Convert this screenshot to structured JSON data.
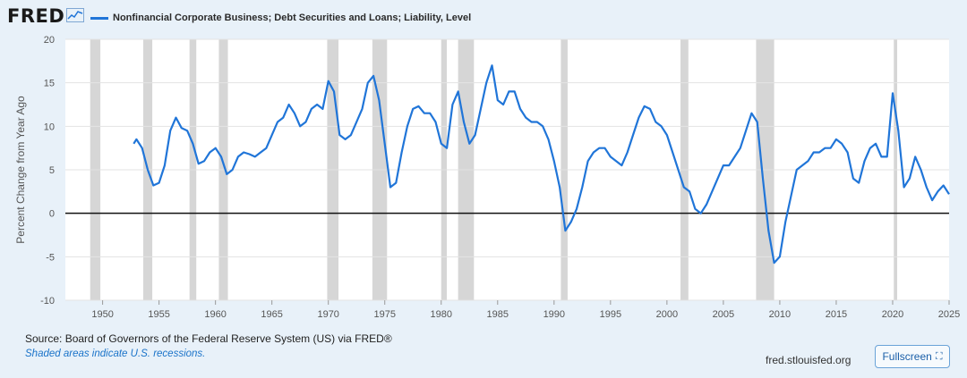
{
  "header": {
    "brand": "FRED",
    "brand_icon": "chart-line-icon",
    "legend_label": "Nonfinancial Corporate Business; Debt Securities and Loans; Liability, Level",
    "series_color": "#2075d8"
  },
  "footer": {
    "source": "Source: Board of Governors of the Federal Reserve System (US) via FRED®",
    "recession_note": "Shaded areas indicate U.S. recessions.",
    "site": "fred.stlouisfed.org",
    "fullscreen_label": "Fullscreen",
    "fullscreen_icon": "expand-icon"
  },
  "chart_data": {
    "type": "line",
    "title": "",
    "xlabel": "",
    "ylabel": "Percent Change from Year Ago",
    "xlim": [
      1946.7,
      2025.0
    ],
    "ylim": [
      -10,
      20
    ],
    "xticks": [
      1950,
      1955,
      1960,
      1965,
      1970,
      1975,
      1980,
      1985,
      1990,
      1995,
      2000,
      2005,
      2010,
      2015,
      2020,
      2025
    ],
    "yticks": [
      -10,
      -5,
      0,
      5,
      10,
      15,
      20
    ],
    "grid": true,
    "legend": "top-left",
    "recessions": [
      [
        1948.9,
        1949.8
      ],
      [
        1953.6,
        1954.4
      ],
      [
        1957.7,
        1958.3
      ],
      [
        1960.3,
        1961.1
      ],
      [
        1969.9,
        1970.9
      ],
      [
        1973.9,
        1975.2
      ],
      [
        1980.0,
        1980.5
      ],
      [
        1981.5,
        1982.9
      ],
      [
        1990.6,
        1991.2
      ],
      [
        2001.2,
        2001.9
      ],
      [
        2007.9,
        2009.5
      ],
      [
        2020.1,
        2020.4
      ]
    ],
    "series": [
      {
        "name": "Nonfinancial Corporate Business; Debt Securities and Loans; Liability, Level",
        "x": [
          1952.75,
          1953.0,
          1953.5,
          1954.0,
          1954.5,
          1955.0,
          1955.5,
          1956.0,
          1956.5,
          1957.0,
          1957.5,
          1958.0,
          1958.5,
          1959.0,
          1959.5,
          1960.0,
          1960.5,
          1961.0,
          1961.5,
          1962.0,
          1962.5,
          1963.0,
          1963.5,
          1964.0,
          1964.5,
          1965.0,
          1965.5,
          1966.0,
          1966.5,
          1967.0,
          1967.5,
          1968.0,
          1968.5,
          1969.0,
          1969.5,
          1970.0,
          1970.5,
          1971.0,
          1971.5,
          1972.0,
          1972.5,
          1973.0,
          1973.5,
          1974.0,
          1974.5,
          1975.0,
          1975.5,
          1976.0,
          1976.5,
          1977.0,
          1977.5,
          1978.0,
          1978.5,
          1979.0,
          1979.5,
          1980.0,
          1980.5,
          1981.0,
          1981.5,
          1982.0,
          1982.5,
          1983.0,
          1983.5,
          1984.0,
          1984.5,
          1985.0,
          1985.5,
          1986.0,
          1986.5,
          1987.0,
          1987.5,
          1988.0,
          1988.5,
          1989.0,
          1989.5,
          1990.0,
          1990.5,
          1991.0,
          1991.5,
          1992.0,
          1992.5,
          1993.0,
          1993.5,
          1994.0,
          1994.5,
          1995.0,
          1995.5,
          1996.0,
          1996.5,
          1997.0,
          1997.5,
          1998.0,
          1998.5,
          1999.0,
          1999.5,
          2000.0,
          2000.5,
          2001.0,
          2001.5,
          2002.0,
          2002.5,
          2003.0,
          2003.5,
          2004.0,
          2004.5,
          2005.0,
          2005.5,
          2006.0,
          2006.5,
          2007.0,
          2007.5,
          2008.0,
          2008.5,
          2009.0,
          2009.5,
          2010.0,
          2010.5,
          2011.0,
          2011.5,
          2012.0,
          2012.5,
          2013.0,
          2013.5,
          2014.0,
          2014.5,
          2015.0,
          2015.5,
          2016.0,
          2016.5,
          2017.0,
          2017.5,
          2018.0,
          2018.5,
          2019.0,
          2019.5,
          2020.0,
          2020.5,
          2021.0,
          2021.5,
          2022.0,
          2022.5,
          2023.0,
          2023.5,
          2024.0,
          2024.5,
          2025.0
        ],
        "values": [
          8.0,
          8.5,
          7.5,
          5.0,
          3.2,
          3.5,
          5.5,
          9.5,
          11.0,
          9.8,
          9.5,
          8.0,
          5.7,
          6.0,
          7.0,
          7.5,
          6.5,
          4.5,
          5.0,
          6.5,
          7.0,
          6.8,
          6.5,
          7.0,
          7.5,
          9.0,
          10.5,
          11.0,
          12.5,
          11.5,
          10.0,
          10.5,
          12.0,
          12.5,
          12.0,
          15.2,
          14.0,
          9.0,
          8.5,
          9.0,
          10.5,
          12.0,
          15.0,
          15.8,
          13.0,
          8.0,
          3.0,
          3.5,
          7.0,
          10.0,
          12.0,
          12.3,
          11.5,
          11.5,
          10.5,
          8.0,
          7.5,
          12.5,
          14.0,
          10.5,
          8.0,
          9.0,
          12.0,
          15.0,
          17.0,
          13.0,
          12.5,
          14.0,
          14.0,
          12.0,
          11.0,
          10.5,
          10.5,
          10.0,
          8.5,
          6.0,
          3.0,
          -2.0,
          -1.0,
          0.5,
          3.0,
          6.0,
          7.0,
          7.5,
          7.5,
          6.5,
          6.0,
          5.5,
          7.0,
          9.0,
          11.0,
          12.3,
          12.0,
          10.5,
          10.0,
          9.0,
          7.0,
          5.0,
          3.0,
          2.5,
          0.5,
          0.0,
          1.0,
          2.5,
          4.0,
          5.5,
          5.5,
          6.5,
          7.5,
          9.5,
          11.5,
          10.5,
          4.0,
          -2.0,
          -5.7,
          -5.0,
          -1.0,
          2.0,
          5.0,
          5.5,
          6.0,
          7.0,
          7.0,
          7.5,
          7.5,
          8.5,
          8.0,
          7.0,
          4.0,
          3.5,
          6.0,
          7.5,
          8.0,
          6.5,
          6.5,
          13.8,
          9.5,
          3.0,
          4.0,
          6.5,
          5.0,
          3.0,
          1.5,
          2.5,
          3.2,
          2.2
        ]
      }
    ]
  }
}
